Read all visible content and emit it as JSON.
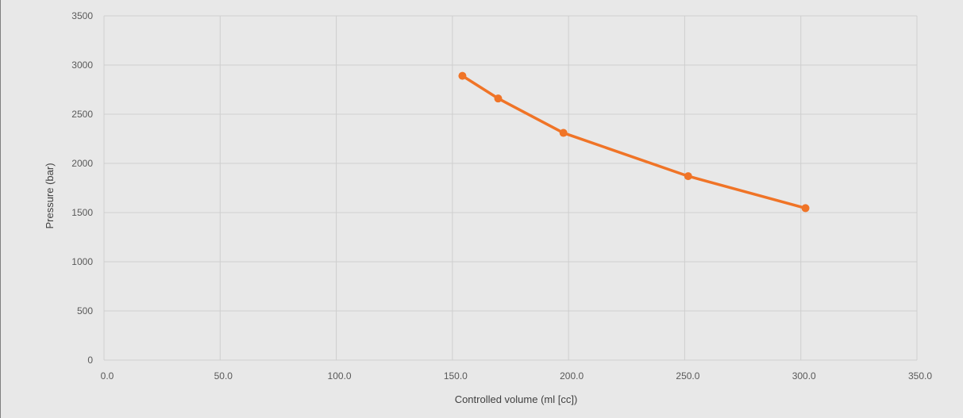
{
  "chart_data": {
    "type": "scatter",
    "title": "",
    "xlabel": "Controlled volume (ml [cc])",
    "ylabel": "Pressure (bar)",
    "xlim": [
      0,
      350
    ],
    "ylim": [
      0,
      3500
    ],
    "x_ticks": [
      "0.0",
      "50.0",
      "100.0",
      "150.0",
      "200.0",
      "250.0",
      "300.0",
      "350.0"
    ],
    "y_ticks": [
      "0",
      "500",
      "1000",
      "1500",
      "2000",
      "2500",
      "3000",
      "3500"
    ],
    "grid": true,
    "legend": "none",
    "series": [
      {
        "color": "#f07427",
        "x": [
          154.3,
          169.7,
          197.8,
          251.5,
          302.0
        ],
        "y": [
          2890,
          2660,
          2310,
          1870,
          1545
        ]
      }
    ]
  }
}
